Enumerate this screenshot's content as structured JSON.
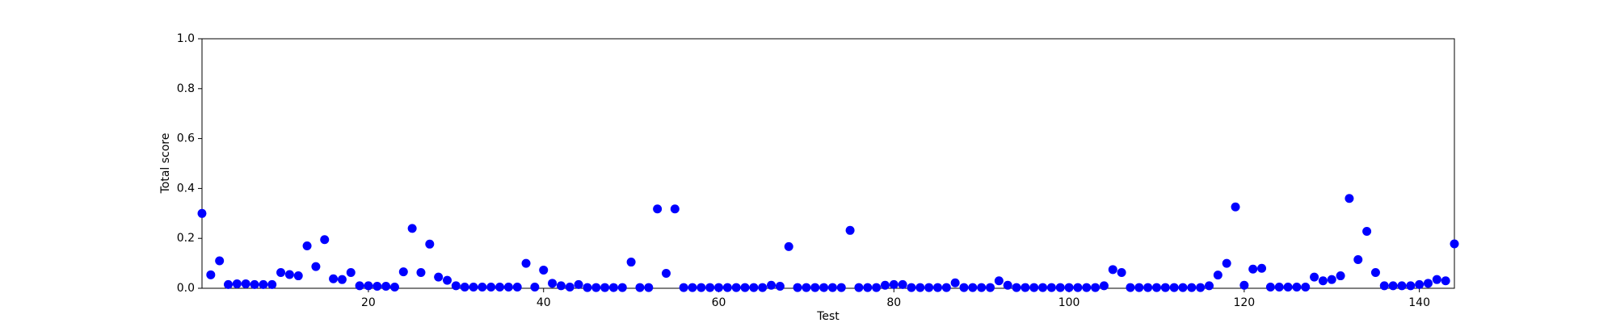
{
  "chart_data": {
    "type": "scatter",
    "xlabel": "Test",
    "ylabel": "Total score",
    "color": "#0000ff",
    "x": [
      1,
      2,
      3,
      4,
      5,
      6,
      7,
      8,
      9,
      10,
      11,
      12,
      13,
      14,
      15,
      16,
      17,
      18,
      19,
      20,
      21,
      22,
      23,
      24,
      25,
      26,
      27,
      28,
      29,
      30,
      31,
      32,
      33,
      34,
      35,
      36,
      37,
      38,
      39,
      40,
      41,
      42,
      43,
      44,
      45,
      46,
      47,
      48,
      49,
      50,
      51,
      52,
      53,
      54,
      55,
      56,
      57,
      58,
      59,
      60,
      61,
      62,
      63,
      64,
      65,
      66,
      67,
      68,
      69,
      70,
      71,
      72,
      73,
      74,
      75,
      76,
      77,
      78,
      79,
      80,
      81,
      82,
      83,
      84,
      85,
      86,
      87,
      88,
      89,
      90,
      91,
      92,
      93,
      94,
      95,
      96,
      97,
      98,
      99,
      100,
      101,
      102,
      103,
      104,
      105,
      106,
      107,
      108,
      109,
      110,
      111,
      112,
      113,
      114,
      115,
      116,
      117,
      118,
      119,
      120,
      121,
      122,
      123,
      124,
      125,
      126,
      127,
      128,
      129,
      130,
      131,
      132,
      133,
      134,
      135,
      136,
      137,
      138,
      139,
      140,
      141,
      142,
      143,
      144
    ],
    "values": [
      0.3,
      0.054,
      0.11,
      0.015,
      0.018,
      0.018,
      0.015,
      0.015,
      0.015,
      0.063,
      0.055,
      0.05,
      0.17,
      0.087,
      0.195,
      0.038,
      0.035,
      0.063,
      0.01,
      0.01,
      0.008,
      0.008,
      0.005,
      0.066,
      0.24,
      0.063,
      0.177,
      0.045,
      0.032,
      0.01,
      0.005,
      0.005,
      0.005,
      0.005,
      0.005,
      0.005,
      0.005,
      0.1,
      0.005,
      0.073,
      0.02,
      0.01,
      0.005,
      0.015,
      0.003,
      0.003,
      0.003,
      0.003,
      0.003,
      0.105,
      0.003,
      0.003,
      0.318,
      0.06,
      0.318,
      0.003,
      0.003,
      0.003,
      0.003,
      0.003,
      0.003,
      0.003,
      0.003,
      0.003,
      0.003,
      0.012,
      0.008,
      0.167,
      0.003,
      0.003,
      0.003,
      0.003,
      0.003,
      0.003,
      0.232,
      0.003,
      0.003,
      0.003,
      0.012,
      0.015,
      0.015,
      0.003,
      0.003,
      0.003,
      0.003,
      0.003,
      0.022,
      0.003,
      0.003,
      0.003,
      0.003,
      0.03,
      0.012,
      0.003,
      0.003,
      0.003,
      0.003,
      0.003,
      0.003,
      0.003,
      0.003,
      0.003,
      0.003,
      0.01,
      0.075,
      0.063,
      0.003,
      0.003,
      0.003,
      0.003,
      0.003,
      0.003,
      0.003,
      0.003,
      0.003,
      0.01,
      0.053,
      0.1,
      0.326,
      0.012,
      0.077,
      0.08,
      0.005,
      0.005,
      0.005,
      0.005,
      0.005,
      0.045,
      0.03,
      0.035,
      0.05,
      0.36,
      0.115,
      0.228,
      0.063,
      0.01,
      0.01,
      0.01,
      0.01,
      0.015,
      0.02,
      0.035,
      0.03,
      0.178
    ],
    "xlim": [
      1,
      144
    ],
    "xticks": [
      20,
      40,
      60,
      80,
      100,
      120,
      140
    ],
    "ylim": [
      0,
      1
    ],
    "yticks": [
      {
        "value": 0,
        "label": "0.0"
      },
      0.2,
      0.4,
      0.6,
      0.8,
      {
        "value": 1,
        "label": "1.0"
      }
    ]
  }
}
